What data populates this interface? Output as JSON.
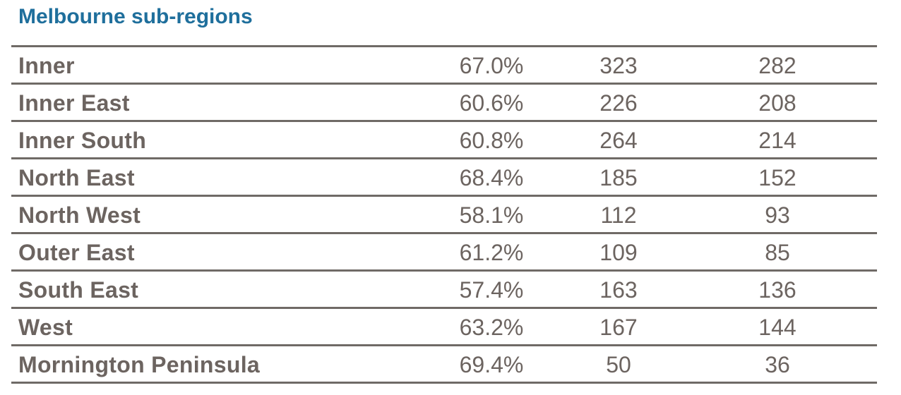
{
  "title": "Melbourne sub-regions",
  "rows": [
    {
      "name": "Inner",
      "percent": "67.0%",
      "value_a": "323",
      "value_b": "282"
    },
    {
      "name": "Inner East",
      "percent": "60.6%",
      "value_a": "226",
      "value_b": "208"
    },
    {
      "name": "Inner South",
      "percent": "60.8%",
      "value_a": "264",
      "value_b": "214"
    },
    {
      "name": "North East",
      "percent": "68.4%",
      "value_a": "185",
      "value_b": "152"
    },
    {
      "name": "North West",
      "percent": "58.1%",
      "value_a": "112",
      "value_b": "93"
    },
    {
      "name": "Outer East",
      "percent": "61.2%",
      "value_a": "109",
      "value_b": "85"
    },
    {
      "name": "South East",
      "percent": "57.4%",
      "value_a": "163",
      "value_b": "136"
    },
    {
      "name": "West",
      "percent": "63.2%",
      "value_a": "167",
      "value_b": "144"
    },
    {
      "name": "Mornington Peninsula",
      "percent": "69.4%",
      "value_a": "50",
      "value_b": "36"
    }
  ],
  "colors": {
    "title": "#1f6f9c",
    "text": "#6c6460",
    "rule": "#6f6a66"
  }
}
